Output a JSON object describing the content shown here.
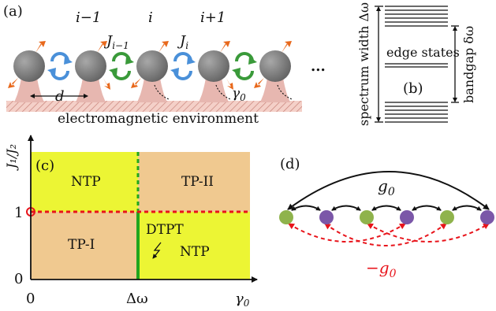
{
  "panel_a": {
    "label": "(a)",
    "site_labels": [
      "i−1",
      "i",
      "i+1"
    ],
    "couplings": [
      "J",
      "i−1",
      "J",
      "i"
    ],
    "spacing_label": "d",
    "decay_label": "γ",
    "decay_sub": "0",
    "ellipsis": "...",
    "environment_label": "electromagnetic environment",
    "colors": {
      "sphere": "#7a7a7a",
      "arrow": "#e8681b",
      "blue_loop": "#4a90d9",
      "green_loop": "#3a9a3a",
      "pillar": "#e7b7b0"
    }
  },
  "panel_b": {
    "label": "(b)",
    "spectrum_width_label": "spectrum width Δω",
    "bandgap_label": "bandgap δω",
    "edge_states_label": "edge states"
  },
  "panel_c": {
    "label": "(c)",
    "y_axis_label": "J₁/J₂",
    "x_axis_label": "γ",
    "x_axis_sub": "0",
    "y_ticks": [
      "1",
      "0"
    ],
    "x_ticks": [
      "0",
      "Δω"
    ],
    "regions": {
      "top_left": "NTP",
      "top_right": "TP-II",
      "bottom_left": "TP-I",
      "bottom_right": "NTP"
    },
    "transition_label": "DTPT",
    "colors": {
      "tan": "#f0c990",
      "yellow": "#ecf534",
      "green_line": "#22a61f",
      "red_line": "#e8141b"
    }
  },
  "panel_d": {
    "label": "(d)",
    "g0_label": "g",
    "g0_sub": "0",
    "neg_g0_label": "−g",
    "neg_g0_sub": "0",
    "colors": {
      "green_node": "#8fb34c",
      "purple_node": "#7b57a8",
      "red_arc": "#e8141b"
    }
  }
}
